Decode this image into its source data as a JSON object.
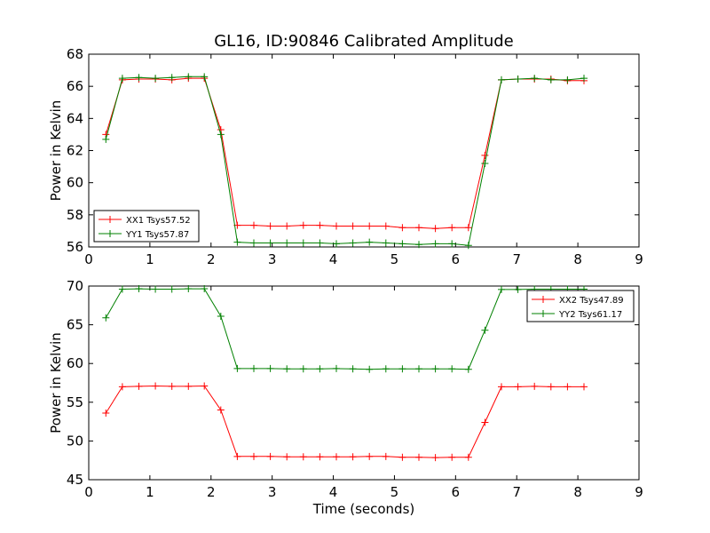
{
  "figure": {
    "title": "GL16, ID:90846 Calibrated Amplitude",
    "xlabel": "Time (seconds)"
  },
  "chart_data": [
    {
      "type": "line",
      "title": "GL16, ID:90846 Calibrated Amplitude",
      "xlabel": "",
      "ylabel": "Power in Kelvin",
      "xlim": [
        0,
        9
      ],
      "ylim": [
        56,
        68
      ],
      "xticks": [
        0,
        1,
        2,
        3,
        4,
        5,
        6,
        7,
        8,
        9
      ],
      "yticks": [
        56,
        58,
        60,
        62,
        64,
        66,
        68
      ],
      "grid": false,
      "legend_position": "lower-left",
      "x": [
        0.28,
        0.55,
        0.82,
        1.09,
        1.36,
        1.63,
        1.89,
        2.16,
        2.43,
        2.7,
        2.97,
        3.24,
        3.51,
        3.78,
        4.05,
        4.32,
        4.59,
        4.86,
        5.13,
        5.4,
        5.67,
        5.94,
        6.21,
        6.48,
        6.75,
        7.02,
        7.29,
        7.56,
        7.83,
        8.1
      ],
      "series": [
        {
          "name": "XX1 Tsys57.52",
          "color": "#ff0000",
          "values": [
            63.0,
            66.4,
            66.45,
            66.45,
            66.4,
            66.5,
            66.5,
            63.3,
            57.35,
            57.35,
            57.3,
            57.3,
            57.35,
            57.35,
            57.3,
            57.3,
            57.3,
            57.3,
            57.2,
            57.2,
            57.15,
            57.2,
            57.2,
            61.7,
            66.4,
            66.45,
            66.45,
            66.45,
            66.35,
            66.35
          ]
        },
        {
          "name": "YY1 Tsys57.87",
          "color": "#008000",
          "values": [
            62.7,
            66.5,
            66.55,
            66.5,
            66.55,
            66.6,
            66.6,
            63.0,
            56.3,
            56.25,
            56.25,
            56.25,
            56.25,
            56.25,
            56.2,
            56.25,
            56.3,
            56.25,
            56.2,
            56.15,
            56.2,
            56.2,
            56.1,
            61.2,
            66.4,
            66.45,
            66.5,
            66.4,
            66.4,
            66.5
          ]
        }
      ]
    },
    {
      "type": "line",
      "xlabel": "Time (seconds)",
      "ylabel": "Power in Kelvin",
      "xlim": [
        0,
        9
      ],
      "ylim": [
        45,
        70
      ],
      "xticks": [
        0,
        1,
        2,
        3,
        4,
        5,
        6,
        7,
        8,
        9
      ],
      "yticks": [
        45,
        50,
        55,
        60,
        65,
        70
      ],
      "grid": false,
      "legend_position": "upper-right",
      "x": [
        0.28,
        0.55,
        0.82,
        1.09,
        1.36,
        1.63,
        1.89,
        2.16,
        2.43,
        2.7,
        2.97,
        3.24,
        3.51,
        3.78,
        4.05,
        4.32,
        4.59,
        4.86,
        5.13,
        5.4,
        5.67,
        5.94,
        6.21,
        6.48,
        6.75,
        7.02,
        7.29,
        7.56,
        7.83,
        8.1
      ],
      "series": [
        {
          "name": "XX2 Tsys47.89",
          "color": "#ff0000",
          "values": [
            53.6,
            57.0,
            57.05,
            57.1,
            57.05,
            57.05,
            57.1,
            54.0,
            48.0,
            48.0,
            48.0,
            47.95,
            47.95,
            47.95,
            47.95,
            47.95,
            48.0,
            48.0,
            47.9,
            47.9,
            47.85,
            47.9,
            47.9,
            52.4,
            57.0,
            57.0,
            57.05,
            57.0,
            57.0,
            57.0
          ]
        },
        {
          "name": "YY2 Tsys61.17",
          "color": "#008000",
          "values": [
            65.9,
            69.6,
            69.65,
            69.6,
            69.6,
            69.65,
            69.65,
            66.1,
            59.35,
            59.35,
            59.35,
            59.3,
            59.3,
            59.3,
            59.35,
            59.3,
            59.25,
            59.3,
            59.3,
            59.3,
            59.3,
            59.3,
            59.25,
            64.3,
            69.55,
            69.55,
            69.6,
            69.6,
            69.6,
            69.6
          ]
        }
      ]
    }
  ]
}
